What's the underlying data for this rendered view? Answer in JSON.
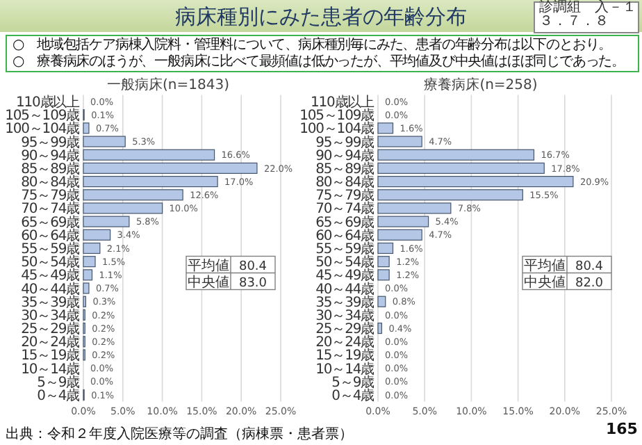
{
  "chart_data": [
    {
      "type": "bar",
      "orientation": "horizontal",
      "title": "一般病床(n=1843)",
      "color": "#b4c7e7",
      "grid": "x",
      "xlim": [
        0,
        25
      ],
      "xticks": [
        {
          "value": 0,
          "label": "0.0%"
        },
        {
          "value": 5,
          "label": "5.0%"
        },
        {
          "value": 10,
          "label": "10.0%"
        },
        {
          "value": 15,
          "label": "15.0%"
        },
        {
          "value": 20,
          "label": "20.0%"
        },
        {
          "value": 25,
          "label": "25.0%"
        }
      ],
      "categories": [
        "110歳以上",
        "105～109歳",
        "100～104歳",
        "95～99歳",
        "90～94歳",
        "85～89歳",
        "80～84歳",
        "75～79歳",
        "70～74歳",
        "65～69歳",
        "60～64歳",
        "55～59歳",
        "50～54歳",
        "45～49歳",
        "40～44歳",
        "35～39歳",
        "30～34歳",
        "25～29歳",
        "20～24歳",
        "15～19歳",
        "10～14歳",
        "5～9歳",
        "0～4歳"
      ],
      "values": [
        0.0,
        0.1,
        0.7,
        5.3,
        16.6,
        22.0,
        17.0,
        12.6,
        10.0,
        5.8,
        3.4,
        2.1,
        1.5,
        1.1,
        0.7,
        0.3,
        0.2,
        0.2,
        0.2,
        0.2,
        0.0,
        0.0,
        0.1
      ],
      "value_labels": [
        "0.0%",
        "0.1%",
        "0.7%",
        "5.3%",
        "16.6%",
        "22.0%",
        "17.0%",
        "12.6%",
        "10.0%",
        "5.8%",
        "3.4%",
        "2.1%",
        "1.5%",
        "1.1%",
        "0.7%",
        "0.3%",
        "0.2%",
        "0.2%",
        "0.2%",
        "0.2%",
        "0.0%",
        "0.0%",
        "0.1%"
      ],
      "annotations": [
        "病床種別にみた患者の年齢分布",
        "診調組　入－１",
        "３．７．８",
        "○　地域包括ケア病棟入院料・管理料について、病床種別毎にみた、患者の年齢分布は以下のとおり。",
        "○　療養病床のほうが、一般病床に比べて最頻値は低かったが、平均値及び中央値はほぼ同じであった。",
        "出典：令和２年度入院医療等の調査（病棟票・患者票）",
        "165",
        "平均値",
        "80.4",
        "中央値",
        "83.0"
      ]
    },
    {
      "type": "bar",
      "orientation": "horizontal",
      "title": "療養病床(n=258)",
      "color": "#b4c7e7",
      "grid": "x",
      "xlim": [
        0,
        25
      ],
      "xticks": [
        {
          "value": 0,
          "label": "0.0%"
        },
        {
          "value": 5,
          "label": "5.0%"
        },
        {
          "value": 10,
          "label": "10.0%"
        },
        {
          "value": 15,
          "label": "15.0%"
        },
        {
          "value": 20,
          "label": "20.0%"
        },
        {
          "value": 25,
          "label": "25.0%"
        }
      ],
      "categories": [
        "110歳以上",
        "105～109歳",
        "100～104歳",
        "95～99歳",
        "90～94歳",
        "85～89歳",
        "80～84歳",
        "75～79歳",
        "70～74歳",
        "65～69歳",
        "60～64歳",
        "55～59歳",
        "50～54歳",
        "45～49歳",
        "40～44歳",
        "35～39歳",
        "30～34歳",
        "25～29歳",
        "20～24歳",
        "15～19歳",
        "10～14歳",
        "5～9歳",
        "0～4歳"
      ],
      "values": [
        0.0,
        0.0,
        1.6,
        4.7,
        16.7,
        17.8,
        20.9,
        15.5,
        7.8,
        5.4,
        4.7,
        1.6,
        1.2,
        1.2,
        0.0,
        0.8,
        0.0,
        0.4,
        0.0,
        0.0,
        0.0,
        0.0,
        0.0
      ],
      "value_labels": [
        "0.0%",
        "0.0%",
        "1.6%",
        "4.7%",
        "16.7%",
        "17.8%",
        "20.9%",
        "15.5%",
        "7.8%",
        "5.4%",
        "4.7%",
        "1.6%",
        "1.2%",
        "1.2%",
        "0.0%",
        "0.8%",
        "0.0%",
        "0.4%",
        "0.0%",
        "0.0%",
        "0.0%",
        "0.0%",
        "0.0%"
      ],
      "annotations": [
        "平均値",
        "80.4",
        "中央値",
        "82.0"
      ]
    }
  ]
}
